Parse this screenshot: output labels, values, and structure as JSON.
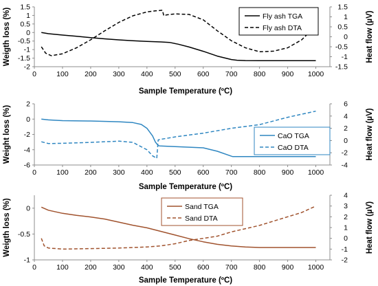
{
  "chart_data": [
    {
      "type": "line",
      "xlabel": "Sample Temperature (ºC)",
      "ylabel": "Weigth loss (%)",
      "y2label": "Heat flow (µV)",
      "xlim": [
        0,
        1050
      ],
      "xticks": [
        "0",
        "100",
        "200",
        "300",
        "400",
        "500",
        "600",
        "700",
        "800",
        "900",
        "1000"
      ],
      "ylim": [
        -2,
        1.5
      ],
      "yticks": [
        "1.5",
        "1",
        "0.5",
        "0",
        "-0.5",
        "-1",
        "-1.5",
        "-2"
      ],
      "y2lim": [
        -1.5,
        1.5
      ],
      "y2ticks": [
        "1.5",
        "1",
        "0.5",
        "0",
        "-0.5",
        "-1",
        "-1.5"
      ],
      "grid": false,
      "legend_position": "top-right",
      "legend_color": "#000000",
      "series": [
        {
          "name": "Fly ash TGA",
          "axis": "left",
          "dash": "solid",
          "color": "#000000",
          "x": [
            25,
            50,
            100,
            150,
            200,
            250,
            300,
            350,
            400,
            450,
            480,
            510,
            550,
            600,
            650,
            700,
            720,
            750,
            800,
            850,
            900,
            950,
            1000
          ],
          "y": [
            0.0,
            -0.07,
            -0.15,
            -0.22,
            -0.3,
            -0.37,
            -0.43,
            -0.48,
            -0.52,
            -0.55,
            -0.58,
            -0.68,
            -0.85,
            -1.1,
            -1.38,
            -1.58,
            -1.62,
            -1.64,
            -1.65,
            -1.65,
            -1.65,
            -1.65,
            -1.65
          ]
        },
        {
          "name": "Fly ash DTA",
          "axis": "right",
          "dash": "dash",
          "color": "#000000",
          "x": [
            25,
            40,
            60,
            100,
            150,
            200,
            250,
            300,
            350,
            400,
            430,
            455,
            460,
            470,
            500,
            550,
            600,
            650,
            700,
            750,
            800,
            850,
            900,
            950,
            1000
          ],
          "y": [
            -0.5,
            -0.82,
            -0.95,
            -0.85,
            -0.55,
            -0.15,
            0.3,
            0.72,
            1.05,
            1.25,
            1.3,
            1.33,
            1.05,
            1.1,
            1.15,
            1.12,
            0.85,
            0.3,
            -0.2,
            -0.55,
            -0.75,
            -0.72,
            -0.55,
            -0.15,
            0.55
          ]
        }
      ]
    },
    {
      "type": "line",
      "xlabel": "Sample Temperature (ºC)",
      "ylabel": "Weight loss (%)",
      "y2label": "Heat flow (µV)",
      "xlim": [
        0,
        1050
      ],
      "xticks": [
        "0",
        "100",
        "200",
        "300",
        "400",
        "500",
        "600",
        "700",
        "800",
        "900",
        "1000"
      ],
      "ylim": [
        -6,
        2
      ],
      "yticks": [
        "2",
        "0",
        "-2",
        "-4",
        "-6"
      ],
      "y2lim": [
        -4,
        6
      ],
      "y2ticks": [
        "6",
        "4",
        "2",
        "0",
        "-2",
        "-4"
      ],
      "grid": false,
      "legend_position": "right",
      "legend_color": "#2e86c1",
      "series": [
        {
          "name": "CaO TGA",
          "axis": "left",
          "dash": "solid",
          "color": "#2e86c1",
          "x": [
            25,
            50,
            100,
            200,
            300,
            350,
            380,
            400,
            420,
            430,
            440,
            445,
            500,
            600,
            650,
            700,
            705,
            800,
            900,
            1000
          ],
          "y": [
            0.0,
            -0.1,
            -0.2,
            -0.25,
            -0.35,
            -0.45,
            -0.7,
            -1.2,
            -2.2,
            -3.0,
            -3.45,
            -3.5,
            -3.6,
            -3.75,
            -4.2,
            -4.85,
            -4.9,
            -4.9,
            -4.9,
            -4.9
          ]
        },
        {
          "name": "CaO DTA",
          "axis": "right",
          "dash": "dash",
          "color": "#2e86c1",
          "x": [
            25,
            50,
            100,
            200,
            300,
            350,
            400,
            420,
            435,
            440,
            450,
            500,
            600,
            700,
            800,
            900,
            950,
            1000
          ],
          "y": [
            -0.2,
            -0.5,
            -0.45,
            -0.3,
            -0.1,
            -0.3,
            -1.5,
            -2.5,
            -2.9,
            0.1,
            0.2,
            0.6,
            1.2,
            2.0,
            2.6,
            3.8,
            4.3,
            4.8
          ]
        }
      ]
    },
    {
      "type": "line",
      "xlabel": "Sample Temperature (ºC)",
      "ylabel": "Weigth loss (%)",
      "y2label": "Heat flow (µV)",
      "xlim": [
        0,
        1050
      ],
      "xticks": [
        "0",
        "100",
        "200",
        "300",
        "400",
        "500",
        "600",
        "700",
        "800",
        "900",
        "1000"
      ],
      "ylim": [
        -1,
        0.25
      ],
      "yticks": [
        "0",
        "-0.5",
        "-1"
      ],
      "y2lim": [
        -2,
        4
      ],
      "y2ticks": [
        "4",
        "3",
        "2",
        "1",
        "0",
        "-1",
        "-2"
      ],
      "grid": false,
      "legend_position": "top-center",
      "legend_color": "#a0522d",
      "series": [
        {
          "name": "Sand TGA",
          "axis": "left",
          "dash": "solid",
          "color": "#a0522d",
          "x": [
            25,
            50,
            100,
            150,
            200,
            250,
            300,
            350,
            400,
            450,
            500,
            550,
            600,
            650,
            700,
            750,
            800,
            850,
            900,
            950,
            1000
          ],
          "y": [
            0.02,
            -0.04,
            -0.1,
            -0.14,
            -0.17,
            -0.21,
            -0.27,
            -0.33,
            -0.38,
            -0.45,
            -0.52,
            -0.59,
            -0.65,
            -0.7,
            -0.73,
            -0.75,
            -0.76,
            -0.76,
            -0.76,
            -0.76,
            -0.76
          ]
        },
        {
          "name": "Sand DTA",
          "axis": "right",
          "dash": "dash",
          "color": "#a0522d",
          "x": [
            25,
            35,
            50,
            100,
            200,
            300,
            400,
            450,
            500,
            550,
            600,
            650,
            700,
            750,
            800,
            850,
            900,
            950,
            1000
          ],
          "y": [
            0.0,
            -0.7,
            -0.9,
            -1.0,
            -0.95,
            -0.9,
            -0.8,
            -0.7,
            -0.5,
            -0.2,
            0.0,
            0.2,
            0.6,
            0.9,
            1.2,
            1.6,
            2.0,
            2.4,
            3.0
          ]
        }
      ]
    }
  ]
}
